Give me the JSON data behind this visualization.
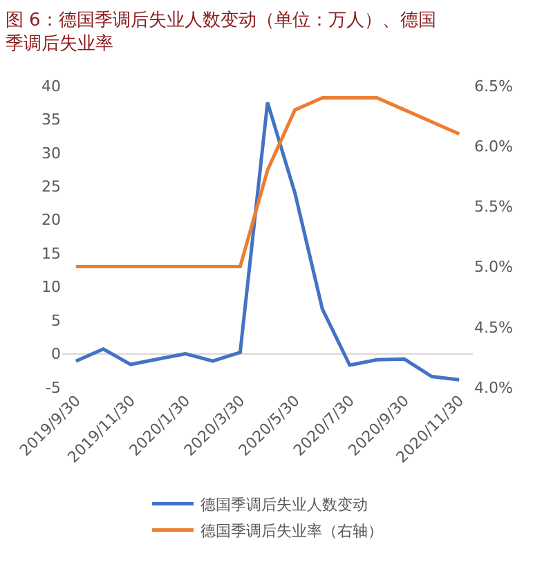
{
  "chart_data": {
    "type": "line",
    "title": "图 6：德国季调后失业人数变动（单位：万人）、德国季调后失业率",
    "categories": [
      "2019/9/30",
      null,
      "2019/11/30",
      null,
      "2020/1/30",
      null,
      "2020/3/30",
      null,
      "2020/5/30",
      null,
      "2020/7/30",
      null,
      "2020/9/30",
      null,
      "2020/11/30"
    ],
    "series": [
      {
        "name": "德国季调后失业人数变动",
        "color": "#4472c4",
        "values": [
          -1.1,
          0.7,
          -1.6,
          -0.8,
          0,
          -1.1,
          0.2,
          37.5,
          24,
          6.7,
          -1.7,
          -0.9,
          -0.8,
          -3.4,
          -3.9
        ]
      },
      {
        "name": "德国季调后失业率（右轴）",
        "color": "#ed7d31",
        "axis": "y2",
        "values": [
          5.0,
          5.0,
          5.0,
          5.0,
          5.0,
          5.0,
          5.0,
          5.8,
          6.3,
          6.4,
          6.4,
          6.4,
          6.3,
          6.2,
          6.1
        ]
      }
    ],
    "ylim": [
      -5,
      40
    ],
    "yticks": [
      -5,
      0,
      5,
      10,
      15,
      20,
      25,
      30,
      35,
      40
    ],
    "y2lim": [
      4.0,
      6.5
    ],
    "y2ticks": [
      {
        "value": 4.0,
        "label": "4.0%"
      },
      {
        "value": 4.5,
        "label": "4.5%"
      },
      {
        "value": 5.0,
        "label": "5.0%"
      },
      {
        "value": 5.5,
        "label": "5.5%"
      },
      {
        "value": 6.0,
        "label": "6.0%"
      },
      {
        "value": 6.5,
        "label": "6.5%"
      }
    ],
    "legend": "bottom",
    "marker": "none",
    "line_style": "solid"
  }
}
